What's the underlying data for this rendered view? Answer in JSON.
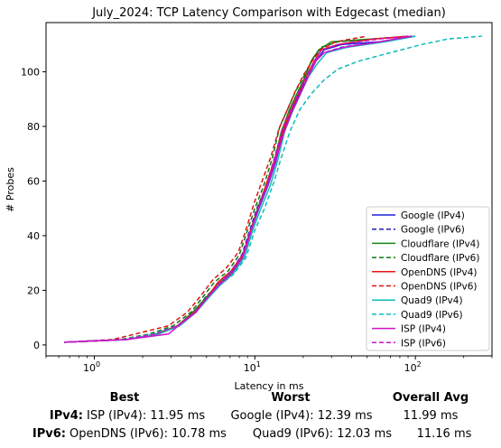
{
  "chart_data": {
    "type": "line",
    "title": "July_2024: TCP Latency Comparison with Edgecast (median)",
    "xlabel": "Latency in ms",
    "ylabel": "# Probes",
    "xscale": "log",
    "xlim": [
      0.5,
      300
    ],
    "ylim": [
      -4,
      118
    ],
    "x_ticks": [
      {
        "value": 1,
        "base": "10",
        "exp": "0"
      },
      {
        "value": 10,
        "base": "10",
        "exp": "1"
      },
      {
        "value": 100,
        "base": "10",
        "exp": "2"
      }
    ],
    "y_ticks": [
      0,
      20,
      40,
      60,
      80,
      100
    ],
    "grid": false,
    "legend_position": "lower-right",
    "series": [
      {
        "name": "Google (IPv4)",
        "color": "#1f1fe0",
        "dash": "solid",
        "points": [
          [
            0.65,
            1
          ],
          [
            1.6,
            2
          ],
          [
            2.5,
            4
          ],
          [
            3.4,
            7
          ],
          [
            4.3,
            12
          ],
          [
            5.0,
            17
          ],
          [
            6.0,
            22
          ],
          [
            7.2,
            26
          ],
          [
            8.5,
            33
          ],
          [
            9.5,
            42
          ],
          [
            10.6,
            50
          ],
          [
            12,
            58
          ],
          [
            13.5,
            67
          ],
          [
            15,
            78
          ],
          [
            17,
            86
          ],
          [
            19,
            92
          ],
          [
            21,
            97
          ],
          [
            24,
            104
          ],
          [
            27,
            108
          ],
          [
            35,
            110
          ],
          [
            60,
            111
          ],
          [
            100,
            113
          ]
        ]
      },
      {
        "name": "Google (IPv6)",
        "color": "#1f1fbf",
        "dash": "dashed",
        "points": [
          [
            0.65,
            1
          ],
          [
            1.5,
            2
          ],
          [
            2.3,
            4
          ],
          [
            3.3,
            7
          ],
          [
            4.2,
            12
          ],
          [
            5.0,
            18
          ],
          [
            6.0,
            22
          ],
          [
            7.1,
            27
          ],
          [
            8.3,
            33
          ],
          [
            9.3,
            42
          ],
          [
            10.3,
            50
          ],
          [
            11.7,
            58
          ],
          [
            13.2,
            68
          ],
          [
            14.8,
            79
          ],
          [
            16.8,
            86
          ],
          [
            18.8,
            92
          ],
          [
            21,
            98
          ],
          [
            24,
            104
          ],
          [
            27,
            107
          ],
          [
            35,
            109
          ],
          [
            60,
            111
          ],
          [
            95,
            113
          ]
        ]
      },
      {
        "name": "Cloudflare (IPv4)",
        "color": "#118811",
        "dash": "solid",
        "points": [
          [
            0.65,
            1
          ],
          [
            1.6,
            2
          ],
          [
            2.4,
            4
          ],
          [
            3.3,
            7
          ],
          [
            4.1,
            12
          ],
          [
            4.9,
            17
          ],
          [
            5.8,
            22
          ],
          [
            7.0,
            26
          ],
          [
            8.3,
            32
          ],
          [
            9.3,
            41
          ],
          [
            10.4,
            50
          ],
          [
            11.7,
            58
          ],
          [
            13.2,
            67
          ],
          [
            14.6,
            78
          ],
          [
            16.4,
            86
          ],
          [
            18.3,
            92
          ],
          [
            20.5,
            98
          ],
          [
            22.5,
            104
          ],
          [
            25,
            108
          ],
          [
            30,
            111
          ],
          [
            55,
            112
          ],
          [
            95,
            113
          ]
        ]
      },
      {
        "name": "Cloudflare (IPv6)",
        "color": "#117711",
        "dash": "dashed",
        "points": [
          [
            0.65,
            1
          ],
          [
            1.45,
            2
          ],
          [
            2.2,
            4
          ],
          [
            3.1,
            7
          ],
          [
            4.0,
            12
          ],
          [
            4.8,
            18
          ],
          [
            5.6,
            23
          ],
          [
            6.8,
            27
          ],
          [
            8.0,
            33
          ],
          [
            9.0,
            42
          ],
          [
            10.0,
            50
          ],
          [
            11.3,
            58
          ],
          [
            12.8,
            68
          ],
          [
            14.3,
            80
          ],
          [
            16.2,
            87
          ],
          [
            18,
            93
          ],
          [
            20.5,
            99
          ],
          [
            23,
            105
          ],
          [
            26,
            109
          ],
          [
            33,
            111
          ],
          [
            55,
            112
          ],
          [
            90,
            113
          ]
        ]
      },
      {
        "name": "OpenDNS (IPv4)",
        "color": "#ee1111",
        "dash": "solid",
        "points": [
          [
            0.65,
            1
          ],
          [
            1.6,
            2
          ],
          [
            2.5,
            4
          ],
          [
            3.3,
            7
          ],
          [
            4.2,
            12
          ],
          [
            5.0,
            17
          ],
          [
            5.9,
            23
          ],
          [
            7.1,
            27
          ],
          [
            8.4,
            33
          ],
          [
            9.4,
            42
          ],
          [
            10.5,
            50
          ],
          [
            11.8,
            59
          ],
          [
            13.3,
            68
          ],
          [
            14.9,
            78
          ],
          [
            16.8,
            86
          ],
          [
            18.7,
            92
          ],
          [
            20.8,
            98
          ],
          [
            23.5,
            104
          ],
          [
            26,
            108
          ],
          [
            33,
            110
          ],
          [
            55,
            112
          ],
          [
            90,
            113
          ]
        ]
      },
      {
        "name": "OpenDNS (IPv6)",
        "color": "#dd1111",
        "dash": "dashed",
        "points": [
          [
            0.65,
            1
          ],
          [
            1.3,
            2
          ],
          [
            1.8,
            4
          ],
          [
            2.9,
            7
          ],
          [
            3.8,
            12
          ],
          [
            4.6,
            18
          ],
          [
            5.5,
            24
          ],
          [
            6.6,
            28
          ],
          [
            7.9,
            34
          ],
          [
            8.9,
            43
          ],
          [
            9.9,
            52
          ],
          [
            11.1,
            60
          ],
          [
            12.6,
            69
          ],
          [
            14.1,
            79
          ],
          [
            15.9,
            86
          ],
          [
            17.9,
            93
          ],
          [
            20.2,
            99
          ],
          [
            22.8,
            104
          ],
          [
            25.5,
            108
          ],
          [
            32,
            111
          ],
          [
            50,
            113
          ]
        ]
      },
      {
        "name": "Quad9 (IPv4)",
        "color": "#11bbbb",
        "dash": "solid",
        "points": [
          [
            0.65,
            1
          ],
          [
            1.6,
            2
          ],
          [
            2.5,
            4
          ],
          [
            3.4,
            7
          ],
          [
            4.3,
            12
          ],
          [
            5.1,
            17
          ],
          [
            6.1,
            22
          ],
          [
            7.3,
            26
          ],
          [
            8.6,
            32
          ],
          [
            9.7,
            42
          ],
          [
            10.9,
            50
          ],
          [
            12.4,
            58
          ],
          [
            13.8,
            67
          ],
          [
            15.3,
            78
          ],
          [
            17.3,
            86
          ],
          [
            19.3,
            92
          ],
          [
            21.5,
            98
          ],
          [
            24.5,
            103
          ],
          [
            28,
            107
          ],
          [
            38,
            109
          ],
          [
            65,
            111
          ],
          [
            100,
            113
          ]
        ]
      },
      {
        "name": "Quad9 (IPv6)",
        "color": "#11bbbb",
        "dash": "dashed",
        "points": [
          [
            0.65,
            1
          ],
          [
            1.5,
            2
          ],
          [
            2.3,
            4
          ],
          [
            3.3,
            7
          ],
          [
            4.3,
            12
          ],
          [
            5.1,
            17
          ],
          [
            6.1,
            22
          ],
          [
            7.4,
            26
          ],
          [
            8.8,
            32
          ],
          [
            10.0,
            42
          ],
          [
            11.5,
            50
          ],
          [
            13.2,
            60
          ],
          [
            14.5,
            68
          ],
          [
            16.5,
            78
          ],
          [
            19,
            86
          ],
          [
            22.5,
            92
          ],
          [
            27,
            97
          ],
          [
            33,
            101
          ],
          [
            45,
            104
          ],
          [
            70,
            107
          ],
          [
            110,
            110
          ],
          [
            160,
            112
          ],
          [
            260,
            113
          ]
        ]
      },
      {
        "name": "ISP (IPv4)",
        "color": "#cc11cc",
        "dash": "solid",
        "points": [
          [
            0.65,
            1
          ],
          [
            1.6,
            2
          ],
          [
            2.9,
            4
          ],
          [
            3.5,
            8
          ],
          [
            4.3,
            12
          ],
          [
            5.0,
            17
          ],
          [
            6.0,
            22
          ],
          [
            7.1,
            26
          ],
          [
            8.4,
            32
          ],
          [
            9.4,
            41
          ],
          [
            10.5,
            50
          ],
          [
            11.9,
            58
          ],
          [
            13.4,
            67
          ],
          [
            15.0,
            77
          ],
          [
            16.9,
            85
          ],
          [
            18.9,
            91
          ],
          [
            21,
            97
          ],
          [
            24,
            104
          ],
          [
            27,
            107
          ],
          [
            36,
            109
          ],
          [
            60,
            111
          ],
          [
            95,
            113
          ]
        ]
      },
      {
        "name": "ISP (IPv6)",
        "color": "#cc11cc",
        "dash": "dashed",
        "points": [
          [
            0.65,
            1
          ],
          [
            1.55,
            2
          ],
          [
            2.4,
            4
          ],
          [
            3.3,
            7
          ],
          [
            4.2,
            12
          ],
          [
            5.0,
            17
          ],
          [
            5.9,
            22
          ],
          [
            7.1,
            27
          ],
          [
            8.4,
            33
          ],
          [
            9.4,
            42
          ],
          [
            10.5,
            50
          ],
          [
            11.8,
            58
          ],
          [
            13.3,
            68
          ],
          [
            14.8,
            79
          ],
          [
            16.7,
            86
          ],
          [
            18.6,
            92
          ],
          [
            20.8,
            98
          ],
          [
            23.5,
            104
          ],
          [
            26,
            108
          ],
          [
            33,
            110
          ],
          [
            60,
            112
          ],
          [
            95,
            113
          ]
        ]
      }
    ]
  },
  "summary": {
    "headers": {
      "best": "Best",
      "worst": "Worst",
      "avg": "Overall Avg"
    },
    "rows": [
      {
        "label": "IPv4:",
        "best": "ISP (IPv4): 11.95 ms",
        "worst": "Google (IPv4): 12.39 ms",
        "avg": "11.99 ms"
      },
      {
        "label": "IPv6:",
        "best": "OpenDNS (IPv6): 10.78 ms",
        "worst": "Quad9 (IPv6): 12.03 ms",
        "avg": "11.16 ms"
      }
    ]
  }
}
